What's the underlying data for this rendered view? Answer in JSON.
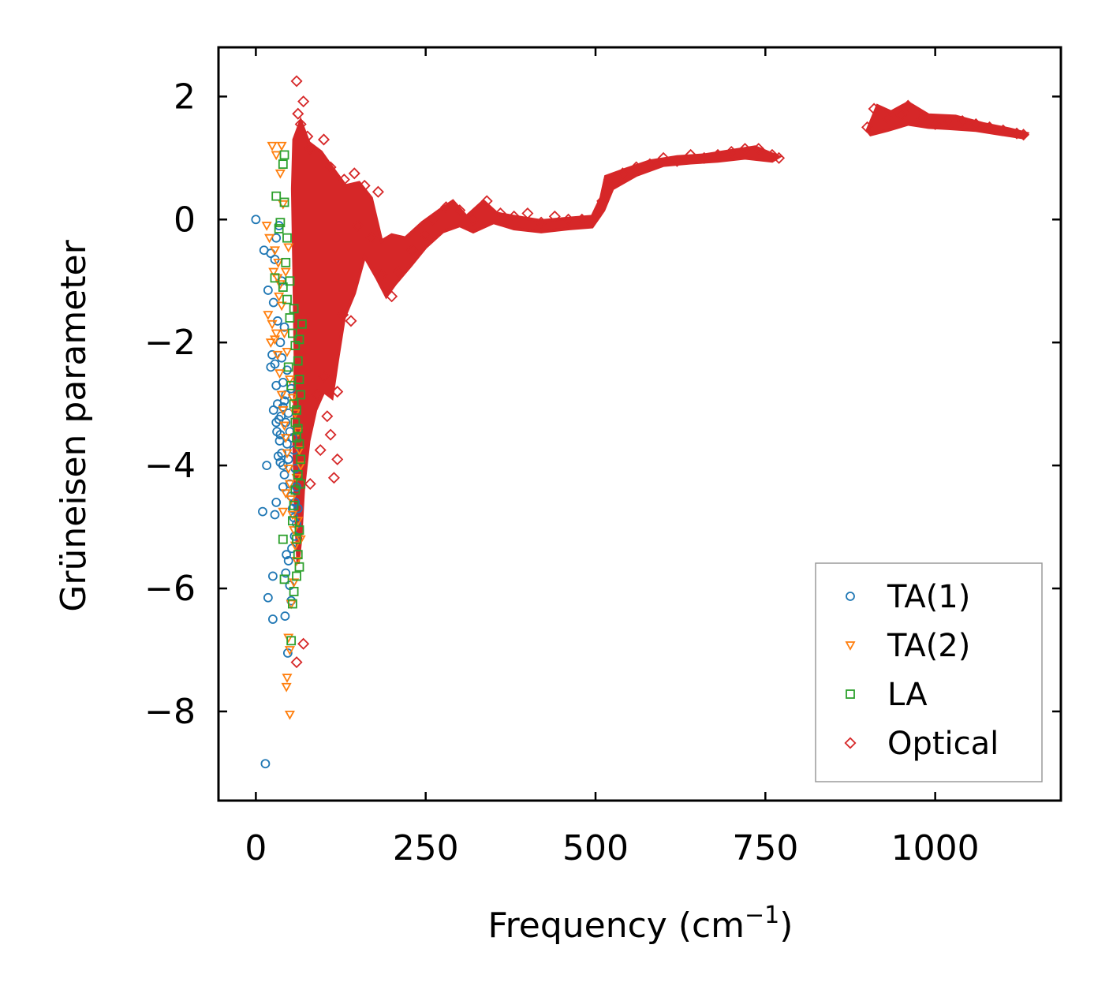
{
  "chart_data": {
    "type": "scatter",
    "xlabel": "Frequency (cm",
    "xlabel_sup": "−1",
    "xlabel_close": ")",
    "ylabel": "Grüneisen parameter",
    "xlim": [
      -55,
      1185
    ],
    "ylim": [
      -9.45,
      2.8
    ],
    "xticks": [
      0,
      250,
      500,
      750,
      1000
    ],
    "xtick_labels": [
      "0",
      "250",
      "500",
      "750",
      "1000"
    ],
    "yticks": [
      2,
      0,
      -2,
      -4,
      -6,
      -8
    ],
    "ytick_labels": [
      "2",
      "0",
      "−2",
      "−4",
      "−6",
      "−8"
    ],
    "legend_position": "lower-right",
    "series": [
      {
        "name": "TA(1)",
        "marker": "circle",
        "color": "#1f77b4",
        "points": [
          [
            0,
            0
          ],
          [
            14,
            -8.85
          ],
          [
            10,
            -4.75
          ],
          [
            16,
            -4.0
          ],
          [
            18,
            -6.15
          ],
          [
            25,
            -6.5
          ],
          [
            25,
            -5.8
          ],
          [
            30,
            -4.6
          ],
          [
            28,
            -4.8
          ],
          [
            22,
            -2.4
          ],
          [
            24,
            -2.2
          ],
          [
            28,
            -2.35
          ],
          [
            30,
            -2.7
          ],
          [
            32,
            -3.0
          ],
          [
            26,
            -3.1
          ],
          [
            30,
            -3.3
          ],
          [
            34,
            -3.25
          ],
          [
            36,
            -3.5
          ],
          [
            38,
            -3.8
          ],
          [
            40,
            -4.0
          ],
          [
            42,
            -4.15
          ],
          [
            33,
            -3.85
          ],
          [
            35,
            -3.6
          ],
          [
            37,
            -3.2
          ],
          [
            40,
            -3.05
          ],
          [
            42,
            -2.95
          ],
          [
            44,
            -3.3
          ],
          [
            46,
            -3.65
          ],
          [
            48,
            -3.9
          ],
          [
            50,
            -4.3
          ],
          [
            52,
            -4.5
          ],
          [
            54,
            -4.7
          ],
          [
            56,
            -4.85
          ],
          [
            58,
            -4.6
          ],
          [
            60,
            -4.35
          ],
          [
            45,
            -5.45
          ],
          [
            48,
            -5.55
          ],
          [
            43,
            -6.45
          ],
          [
            47,
            -7.05
          ],
          [
            52,
            -6.2
          ],
          [
            18,
            -1.15
          ],
          [
            22,
            -0.55
          ],
          [
            28,
            -0.65
          ],
          [
            30,
            -0.3
          ],
          [
            26,
            -1.35
          ],
          [
            32,
            -1.65
          ],
          [
            36,
            -2.0
          ],
          [
            38,
            -2.25
          ],
          [
            40,
            -2.65
          ],
          [
            44,
            -2.85
          ],
          [
            48,
            -3.15
          ],
          [
            50,
            -3.45
          ],
          [
            54,
            -3.55
          ],
          [
            56,
            -3.75
          ],
          [
            58,
            -4.05
          ],
          [
            12,
            -0.5
          ],
          [
            34,
            -0.1
          ],
          [
            38,
            -1.0
          ],
          [
            42,
            -1.75
          ],
          [
            46,
            -2.45
          ],
          [
            52,
            -2.75
          ],
          [
            60,
            -4.95
          ],
          [
            62,
            -4.7
          ],
          [
            57,
            -5.15
          ],
          [
            53,
            -5.35
          ],
          [
            44,
            -5.75
          ],
          [
            50,
            -5.95
          ],
          [
            40,
            -4.35
          ],
          [
            36,
            -3.95
          ],
          [
            31,
            -3.45
          ]
        ]
      },
      {
        "name": "TA(2)",
        "marker": "triangle-down",
        "color": "#ff7f0e",
        "points": [
          [
            24,
            1.2
          ],
          [
            30,
            1.05
          ],
          [
            38,
            1.2
          ],
          [
            36,
            0.75
          ],
          [
            40,
            0.25
          ],
          [
            16,
            -0.1
          ],
          [
            20,
            -0.3
          ],
          [
            28,
            -0.5
          ],
          [
            33,
            -0.7
          ],
          [
            36,
            -1.05
          ],
          [
            18,
            -1.55
          ],
          [
            24,
            -1.7
          ],
          [
            28,
            -1.95
          ],
          [
            22,
            -2.0
          ],
          [
            32,
            -2.2
          ],
          [
            35,
            -2.5
          ],
          [
            38,
            -2.85
          ],
          [
            40,
            -3.1
          ],
          [
            42,
            -3.35
          ],
          [
            44,
            -3.55
          ],
          [
            46,
            -3.8
          ],
          [
            48,
            -4.05
          ],
          [
            50,
            -4.3
          ],
          [
            52,
            -4.55
          ],
          [
            54,
            -4.8
          ],
          [
            56,
            -5.05
          ],
          [
            58,
            -5.3
          ],
          [
            60,
            -5.55
          ],
          [
            48,
            -6.8
          ],
          [
            50,
            -7.0
          ],
          [
            46,
            -7.45
          ],
          [
            45,
            -7.6
          ],
          [
            50,
            -8.05
          ],
          [
            32,
            -0.95
          ],
          [
            38,
            -1.4
          ],
          [
            42,
            -1.85
          ],
          [
            46,
            -2.15
          ],
          [
            50,
            -2.6
          ],
          [
            54,
            -2.9
          ],
          [
            58,
            -3.15
          ],
          [
            62,
            -3.45
          ],
          [
            64,
            -3.75
          ],
          [
            66,
            -4.0
          ],
          [
            60,
            -4.2
          ],
          [
            62,
            -4.9
          ],
          [
            66,
            -5.2
          ],
          [
            56,
            -5.9
          ],
          [
            52,
            -6.25
          ],
          [
            44,
            -4.45
          ],
          [
            40,
            -4.75
          ],
          [
            34,
            -1.25
          ],
          [
            44,
            -0.85
          ],
          [
            48,
            -0.45
          ],
          [
            26,
            -0.85
          ],
          [
            30,
            -1.85
          ]
        ]
      },
      {
        "name": "LA",
        "marker": "square",
        "color": "#2ca02c",
        "points": [
          [
            42,
            1.05
          ],
          [
            40,
            0.9
          ],
          [
            30,
            0.38
          ],
          [
            42,
            0.28
          ],
          [
            36,
            -0.05
          ],
          [
            34,
            -0.15
          ],
          [
            46,
            -0.3
          ],
          [
            28,
            -0.95
          ],
          [
            40,
            -1.1
          ],
          [
            46,
            -1.3
          ],
          [
            50,
            -1.6
          ],
          [
            54,
            -1.85
          ],
          [
            58,
            -2.05
          ],
          [
            62,
            -2.3
          ],
          [
            64,
            -2.6
          ],
          [
            66,
            -2.85
          ],
          [
            60,
            -3.1
          ],
          [
            62,
            -3.4
          ],
          [
            64,
            -3.65
          ],
          [
            66,
            -3.9
          ],
          [
            62,
            -4.15
          ],
          [
            58,
            -4.4
          ],
          [
            56,
            -4.65
          ],
          [
            54,
            -4.9
          ],
          [
            60,
            -5.2
          ],
          [
            62,
            -5.45
          ],
          [
            64,
            -5.65
          ],
          [
            56,
            -6.05
          ],
          [
            54,
            -6.25
          ],
          [
            52,
            -6.85
          ],
          [
            40,
            -5.2
          ],
          [
            42,
            -5.85
          ],
          [
            68,
            -1.7
          ],
          [
            64,
            -1.95
          ],
          [
            48,
            -2.4
          ],
          [
            52,
            -2.7
          ],
          [
            56,
            -3.0
          ],
          [
            58,
            -3.3
          ],
          [
            60,
            -3.55
          ],
          [
            66,
            -4.3
          ],
          [
            64,
            -5.05
          ],
          [
            60,
            -5.8
          ],
          [
            44,
            -0.7
          ],
          [
            50,
            -1.0
          ],
          [
            56,
            -1.45
          ]
        ]
      },
      {
        "name": "Optical",
        "marker": "diamond",
        "color": "#d62728",
        "points": [
          [
            60,
            2.25
          ],
          [
            70,
            1.92
          ],
          [
            62,
            1.72
          ],
          [
            76,
            1.35
          ],
          [
            66,
            1.55
          ],
          [
            80,
            1.15
          ],
          [
            100,
            1.3
          ],
          [
            110,
            0.85
          ],
          [
            130,
            0.65
          ],
          [
            145,
            0.75
          ],
          [
            160,
            0.55
          ],
          [
            180,
            0.45
          ],
          [
            150,
            -0.1
          ],
          [
            170,
            -0.3
          ],
          [
            185,
            -0.9
          ],
          [
            200,
            -1.25
          ],
          [
            70,
            -6.9
          ],
          [
            60,
            -7.2
          ],
          [
            80,
            -4.3
          ],
          [
            95,
            -3.75
          ],
          [
            115,
            -4.2
          ],
          [
            120,
            -3.9
          ],
          [
            110,
            -3.5
          ],
          [
            105,
            -3.2
          ],
          [
            90,
            -2.85
          ],
          [
            100,
            -2.55
          ],
          [
            120,
            -2.8
          ],
          [
            128,
            -1.55
          ],
          [
            140,
            -1.65
          ],
          [
            210,
            -0.85
          ],
          [
            230,
            -0.5
          ],
          [
            250,
            -0.25
          ],
          [
            260,
            0.0
          ],
          [
            280,
            0.2
          ],
          [
            300,
            0.15
          ],
          [
            320,
            0.0
          ],
          [
            340,
            0.3
          ],
          [
            360,
            0.1
          ],
          [
            380,
            0.05
          ],
          [
            400,
            0.1
          ],
          [
            420,
            -0.05
          ],
          [
            440,
            0.05
          ],
          [
            460,
            0.0
          ],
          [
            480,
            0.0
          ],
          [
            500,
            0.05
          ],
          [
            510,
            0.3
          ],
          [
            520,
            0.65
          ],
          [
            540,
            0.75
          ],
          [
            560,
            0.85
          ],
          [
            580,
            0.9
          ],
          [
            600,
            1.0
          ],
          [
            620,
            0.95
          ],
          [
            640,
            1.05
          ],
          [
            660,
            1.0
          ],
          [
            680,
            1.05
          ],
          [
            700,
            1.1
          ],
          [
            720,
            1.15
          ],
          [
            740,
            1.15
          ],
          [
            760,
            1.05
          ],
          [
            770,
            1.0
          ],
          [
            900,
            1.5
          ],
          [
            910,
            1.8
          ],
          [
            930,
            1.65
          ],
          [
            950,
            1.7
          ],
          [
            960,
            1.85
          ],
          [
            980,
            1.65
          ],
          [
            1000,
            1.55
          ],
          [
            1020,
            1.6
          ],
          [
            1040,
            1.6
          ],
          [
            1060,
            1.55
          ],
          [
            1080,
            1.5
          ],
          [
            1100,
            1.45
          ],
          [
            1120,
            1.4
          ],
          [
            1130,
            1.38
          ]
        ]
      }
    ]
  }
}
